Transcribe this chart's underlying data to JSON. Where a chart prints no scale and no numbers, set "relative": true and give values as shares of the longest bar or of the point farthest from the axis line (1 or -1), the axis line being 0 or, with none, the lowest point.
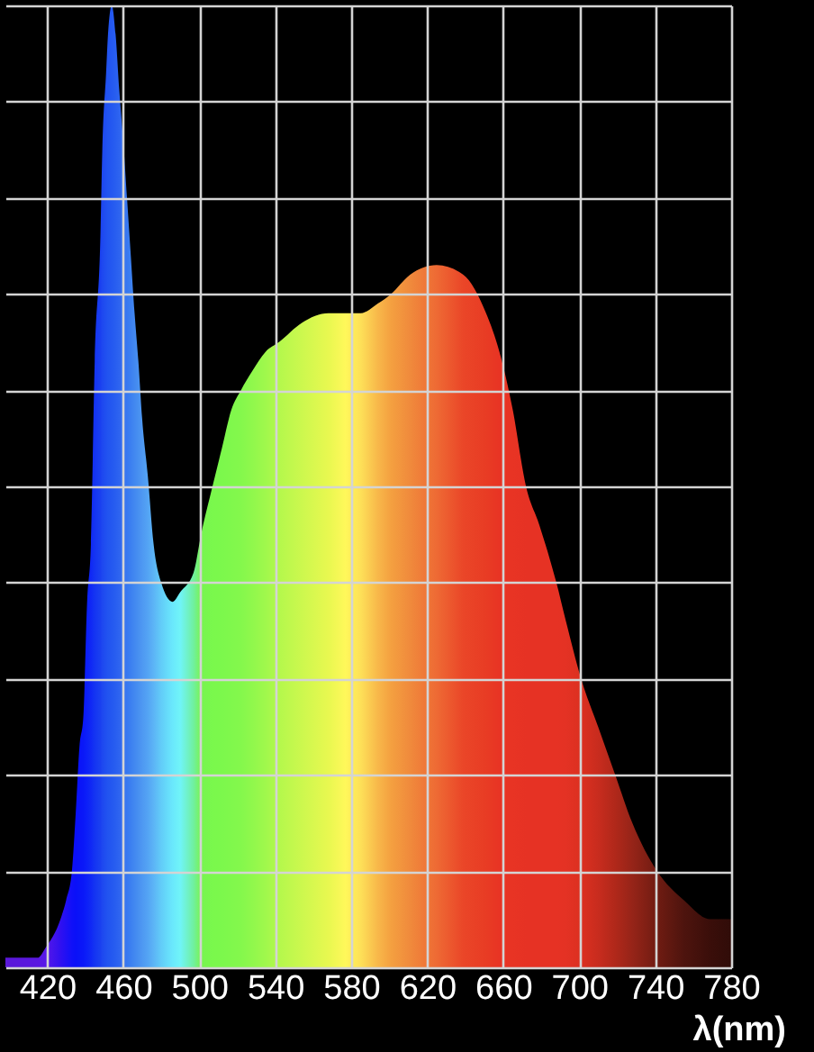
{
  "chart_data": {
    "type": "area",
    "relative": true,
    "xlabel": "λ(nm)",
    "x": [
      398,
      415,
      419,
      427,
      430,
      433,
      435,
      437,
      439,
      441,
      443,
      445,
      448,
      449,
      451,
      452,
      454,
      456,
      458,
      460,
      462,
      464,
      466,
      468,
      470,
      473,
      476,
      480,
      486,
      490,
      497,
      501,
      507,
      512,
      517,
      522,
      528,
      535,
      542,
      554,
      568,
      577,
      585,
      594,
      601,
      611,
      625,
      639,
      651,
      658,
      665,
      672,
      679,
      688,
      693,
      701,
      710,
      719,
      728,
      741,
      755,
      769,
      780
    ],
    "values": [
      0.01,
      0.01,
      0.02,
      0.05,
      0.07,
      0.1,
      0.16,
      0.23,
      0.26,
      0.38,
      0.44,
      0.63,
      0.76,
      0.85,
      0.93,
      0.97,
      1.0,
      0.97,
      0.91,
      0.86,
      0.8,
      0.74,
      0.68,
      0.63,
      0.57,
      0.51,
      0.44,
      0.4,
      0.38,
      0.39,
      0.41,
      0.45,
      0.5,
      0.54,
      0.58,
      0.6,
      0.62,
      0.64,
      0.65,
      0.67,
      0.68,
      0.68,
      0.68,
      0.69,
      0.7,
      0.72,
      0.73,
      0.72,
      0.68,
      0.64,
      0.58,
      0.5,
      0.46,
      0.4,
      0.36,
      0.3,
      0.25,
      0.2,
      0.15,
      0.1,
      0.07,
      0.05,
      0.05
    ],
    "colors": [
      "#5a18d8",
      "#5a18e0",
      "#5818e8",
      "#3010f0",
      "#2010f5",
      "#1010f8",
      "#0a10f8",
      "#0a14f8",
      "#0a18f8",
      "#0c20f8",
      "#1028f5",
      "#1434f2",
      "#1a40f0",
      "#1e48f0",
      "#2050f0",
      "#2254f0",
      "#2458f0",
      "#285ef0",
      "#2e64f0",
      "#3470f0",
      "#3878f0",
      "#3c80f0",
      "#4288f0",
      "#4890f0",
      "#4e98f2",
      "#54a4f4",
      "#5cb4f6",
      "#62ccf8",
      "#6ae8fc",
      "#70f4f8",
      "#70f0a0",
      "#78f450",
      "#7af84c",
      "#7cf84c",
      "#80f84c",
      "#84f84c",
      "#90f84c",
      "#a0f84c",
      "#b4f84c",
      "#ccf84e",
      "#e8f850",
      "#fff85a",
      "#fde058",
      "#f8b84a",
      "#f4a040",
      "#f08a3c",
      "#ee6a34",
      "#ea4628",
      "#e83c24",
      "#e83424",
      "#e83424",
      "#e63224",
      "#e63224",
      "#e63224",
      "#e43224",
      "#dc3020",
      "#c82c1e",
      "#b0281a",
      "#962418",
      "#701c12",
      "#4e140e",
      "#3a0e0a",
      "#300c08"
    ],
    "xlim": [
      398,
      780
    ],
    "xticks": [
      420,
      460,
      500,
      540,
      580,
      620,
      660,
      700,
      740,
      780
    ],
    "grid": true
  }
}
